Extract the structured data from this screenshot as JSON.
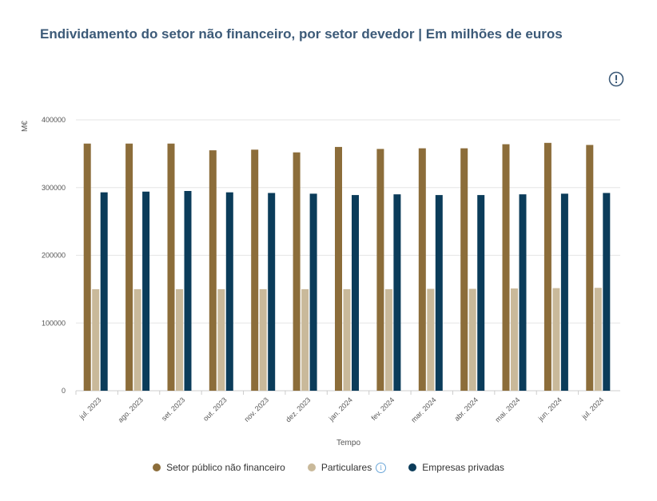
{
  "page": {
    "title": "Endividamento do setor não financeiro, por setor devedor | Em milhões de euros",
    "info_icon": "info-circle-icon"
  },
  "chart_data": {
    "type": "bar",
    "ylabel": "M€",
    "xlabel": "Tempo",
    "ylim": [
      0,
      400000
    ],
    "yticks": [
      "0",
      "100000",
      "200000",
      "300000",
      "400000"
    ],
    "grid": true,
    "legend_position": "bottom",
    "categories": [
      "jul. 2023",
      "ago. 2023",
      "set. 2023",
      "out. 2023",
      "nov. 2023",
      "dez. 2023",
      "jan. 2024",
      "fev. 2024",
      "mar. 2024",
      "abr. 2024",
      "mai. 2024",
      "jun. 2024",
      "jul. 2024"
    ],
    "series": [
      {
        "name": "Setor público não financeiro",
        "color": "#8c6d3a",
        "values": [
          365000,
          365000,
          365000,
          355000,
          356000,
          352000,
          360000,
          357000,
          358000,
          358000,
          364000,
          366000,
          363000
        ]
      },
      {
        "name": "Particulares",
        "color": "#c9b99a",
        "values": [
          150000,
          150000,
          150000,
          150000,
          150000,
          150000,
          150000,
          150000,
          150500,
          150500,
          151000,
          151500,
          152000
        ],
        "has_info_icon": true
      },
      {
        "name": "Empresas privadas",
        "color": "#0b3c5a",
        "values": [
          293000,
          294000,
          295000,
          293000,
          292000,
          291000,
          289000,
          290000,
          289000,
          289000,
          290000,
          291000,
          292000
        ]
      }
    ]
  }
}
